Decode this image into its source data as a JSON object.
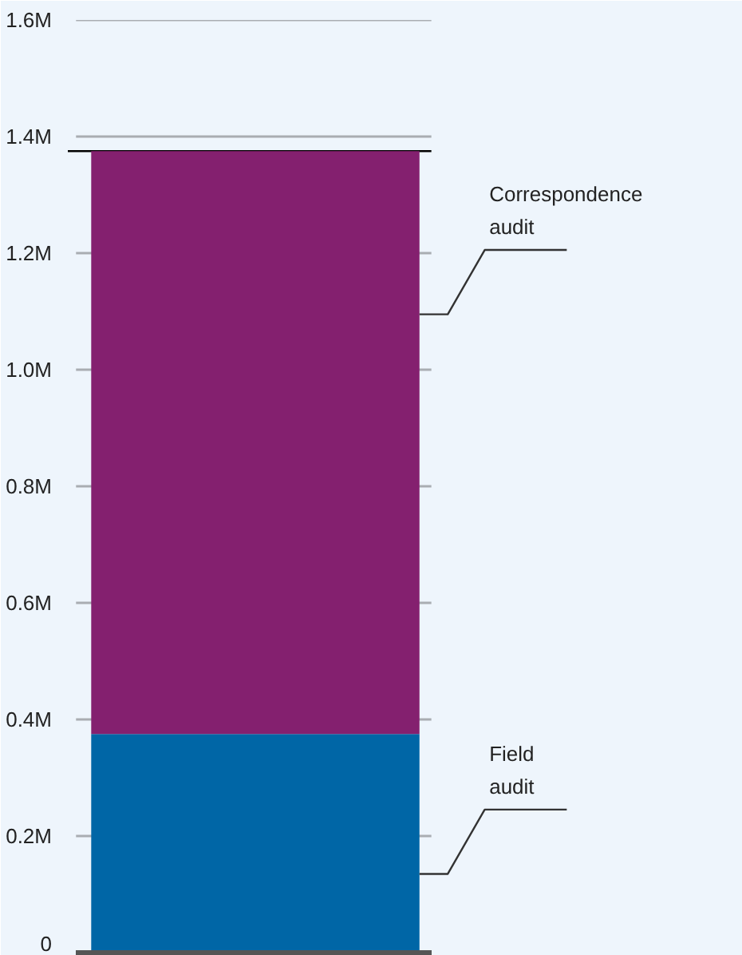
{
  "chart_data": {
    "type": "bar",
    "stacked": true,
    "categories": [
      null
    ],
    "series": [
      {
        "name": "Field audit",
        "color": "#0066a6",
        "values": [
          375000
        ]
      },
      {
        "name": "Correspondence audit",
        "color": "#84206f",
        "values": [
          1000000
        ]
      }
    ],
    "ylim": [
      0,
      1600000
    ],
    "yticks": [
      {
        "value": 0,
        "label": "0"
      },
      {
        "value": 200000,
        "label": "0.2M"
      },
      {
        "value": 400000,
        "label": "0.4M"
      },
      {
        "value": 600000,
        "label": "0.6M"
      },
      {
        "value": 800000,
        "label": "0.8M"
      },
      {
        "value": 1000000,
        "label": "1.0M"
      },
      {
        "value": 1200000,
        "label": "1.2M"
      },
      {
        "value": 1400000,
        "label": "1.4M"
      },
      {
        "value": 1600000,
        "label": "1.6M"
      }
    ],
    "ref_lines": [
      {
        "axis": "y",
        "value": 1375000,
        "label": null,
        "color": "#000000"
      }
    ],
    "grid": "y"
  }
}
